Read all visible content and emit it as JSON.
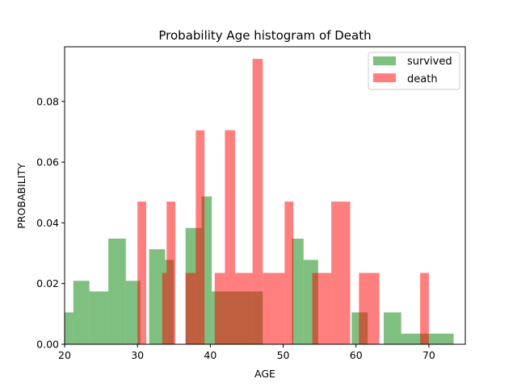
{
  "chart_data": {
    "type": "bar",
    "title": "Probability Age histogram of Death",
    "xlabel": "AGE",
    "ylabel": "PROBABILITY",
    "xlim": [
      20,
      75
    ],
    "ylim": [
      0,
      0.098
    ],
    "xticks": [
      20,
      30,
      40,
      50,
      60,
      70
    ],
    "yticks": [
      0.0,
      0.02,
      0.04,
      0.06,
      0.08
    ],
    "ytick_labels": [
      "0.00",
      "0.02",
      "0.04",
      "0.06",
      "0.08"
    ],
    "grid": false,
    "legend_position": "top-right",
    "series": [
      {
        "name": "survived",
        "color": "#008000",
        "alpha": 0.5,
        "bins": [
          [
            20.0,
            21.2,
            0.0105
          ],
          [
            21.2,
            23.4,
            0.0209
          ],
          [
            23.4,
            26.0,
            0.0174
          ],
          [
            26.0,
            28.4,
            0.0348
          ],
          [
            28.4,
            30.4,
            0.0209
          ],
          [
            30.4,
            31.6,
            0.0
          ],
          [
            31.6,
            33.8,
            0.0313
          ],
          [
            33.8,
            35.0,
            0.0278
          ],
          [
            35.0,
            36.6,
            0.0
          ],
          [
            36.6,
            38.8,
            0.0383
          ],
          [
            38.8,
            40.2,
            0.0487
          ],
          [
            40.2,
            40.6,
            0.0174
          ],
          [
            40.6,
            47.2,
            0.0174
          ],
          [
            47.2,
            51.2,
            0.0
          ],
          [
            51.2,
            52.8,
            0.0348
          ],
          [
            52.8,
            54.8,
            0.0278
          ],
          [
            54.8,
            59.4,
            0.0
          ],
          [
            59.4,
            61.6,
            0.0105
          ],
          [
            61.6,
            63.8,
            0.0
          ],
          [
            63.8,
            66.2,
            0.0105
          ],
          [
            66.2,
            73.4,
            0.0035
          ]
        ]
      },
      {
        "name": "death",
        "color": "#ff0000",
        "alpha": 0.5,
        "bins": [
          [
            30.0,
            31.2,
            0.047
          ],
          [
            31.2,
            33.4,
            0.0
          ],
          [
            33.4,
            34.0,
            0.0235
          ],
          [
            34.0,
            35.2,
            0.047
          ],
          [
            35.2,
            36.6,
            0.0
          ],
          [
            36.6,
            38.0,
            0.0235
          ],
          [
            38.0,
            39.2,
            0.0705
          ],
          [
            39.2,
            40.6,
            0.0
          ],
          [
            40.6,
            42.0,
            0.0235
          ],
          [
            42.0,
            43.4,
            0.0705
          ],
          [
            43.4,
            45.8,
            0.0235
          ],
          [
            45.8,
            47.2,
            0.094
          ],
          [
            47.2,
            50.2,
            0.0235
          ],
          [
            50.2,
            51.4,
            0.047
          ],
          [
            51.4,
            54.0,
            0.0
          ],
          [
            54.0,
            56.6,
            0.0235
          ],
          [
            56.6,
            59.2,
            0.047
          ],
          [
            59.2,
            60.4,
            0.0
          ],
          [
            60.4,
            63.2,
            0.0235
          ],
          [
            63.2,
            68.8,
            0.0
          ],
          [
            68.8,
            70.0,
            0.0235
          ]
        ]
      }
    ]
  }
}
